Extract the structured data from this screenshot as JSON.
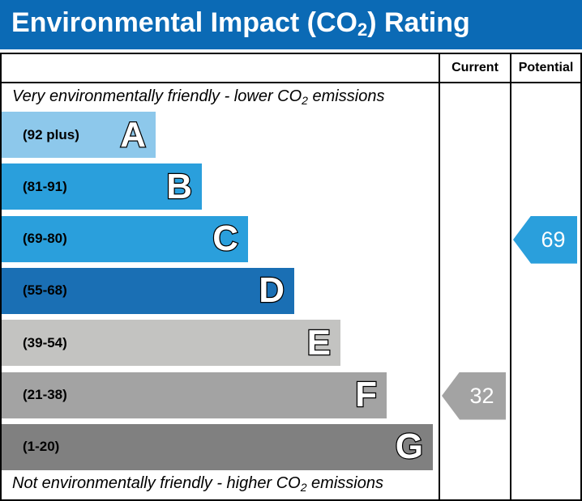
{
  "header": {
    "title_main": "Environmental Impact (CO",
    "title_sub": "2",
    "title_end": ") Rating",
    "background": "#0b6ab5"
  },
  "columns": {
    "current": "Current",
    "potential": "Potential"
  },
  "captions": {
    "top_main": "Very environmentally friendly - lower CO",
    "top_sub": "2",
    "top_end": " emissions",
    "bottom_main": "Not environmentally friendly - higher CO",
    "bottom_sub": "2",
    "bottom_end": " emissions"
  },
  "chart_data": {
    "type": "bar",
    "categories": [
      "A",
      "B",
      "C",
      "D",
      "E",
      "F",
      "G"
    ],
    "bands": [
      {
        "letter": "A",
        "range": "(92 plus)",
        "color": "#8dc8eb"
      },
      {
        "letter": "B",
        "range": "(81-91)",
        "color": "#2a9fdc"
      },
      {
        "letter": "C",
        "range": "(69-80)",
        "color": "#2a9fdc"
      },
      {
        "letter": "D",
        "range": "(55-68)",
        "color": "#1a6fb4"
      },
      {
        "letter": "E",
        "range": "(39-54)",
        "color": "#c3c3c1"
      },
      {
        "letter": "F",
        "range": "(21-38)",
        "color": "#a3a3a3"
      },
      {
        "letter": "G",
        "range": "(1-20)",
        "color": "#808080"
      }
    ],
    "current": {
      "value": "32",
      "band": "F",
      "color": "#a3a3a3"
    },
    "potential": {
      "value": "69",
      "band": "C",
      "color": "#2a9fdc"
    }
  }
}
